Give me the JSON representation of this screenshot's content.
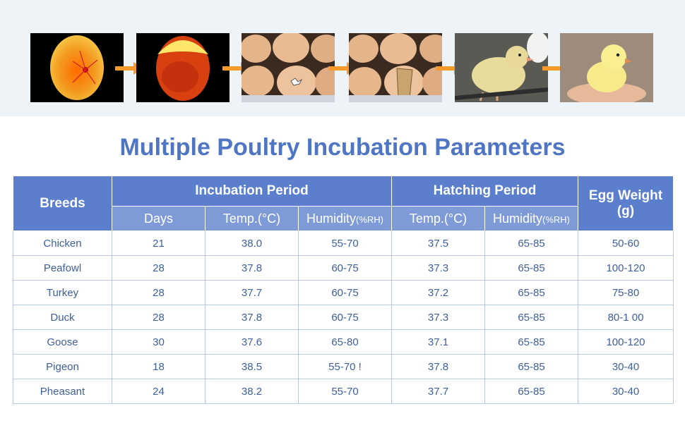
{
  "header": {
    "stages": [
      {
        "icon": "candled-egg-icon"
      },
      {
        "icon": "egg-air-sac-icon"
      },
      {
        "icon": "pipping-egg-icon"
      },
      {
        "icon": "hatching-egg-icon"
      },
      {
        "icon": "wet-chick-icon"
      },
      {
        "icon": "fluffy-chick-icon"
      }
    ]
  },
  "title": "Multiple Poultry Incubation Parameters",
  "table": {
    "head": {
      "breeds": "Breeds",
      "incubation": "Incubation Period",
      "hatching": "Hatching Period",
      "egg_weight": "Egg Weight",
      "egg_weight_unit": "(g)",
      "days": "Days",
      "temp": "Temp.(°C)",
      "humidity": "Humidity",
      "humidity_unit": "(%RH)"
    },
    "rows": [
      [
        "Chicken",
        "21",
        "38.0",
        "55-70",
        "37.5",
        "65-85",
        "50-60"
      ],
      [
        "Peafowl",
        "28",
        "37.8",
        "60-75",
        "37.3",
        "65-85",
        "100-120"
      ],
      [
        "Turkey",
        "28",
        "37.7",
        "60-75",
        "37.2",
        "65-85",
        "75-80"
      ],
      [
        "Duck",
        "28",
        "37.8",
        "60-75",
        "37.3",
        "65-85",
        "80-1 00"
      ],
      [
        "Goose",
        "30",
        "37.6",
        "65-80",
        "37.1",
        "65-85",
        "100-120"
      ],
      [
        "Pigeon",
        "18",
        "38.5",
        "55-70 !",
        "37.8",
        "65-85",
        "30-40"
      ],
      [
        "Pheasant",
        "24",
        "38.2",
        "55-70",
        "37.7",
        "65-85",
        "30-40"
      ]
    ]
  },
  "colors": {
    "title": "#4f75c5",
    "header_dark": "#5b7fcd",
    "header_light": "#7e9bd8",
    "cell_text": "#3f5f9a",
    "arrow": "#f59a2b"
  }
}
